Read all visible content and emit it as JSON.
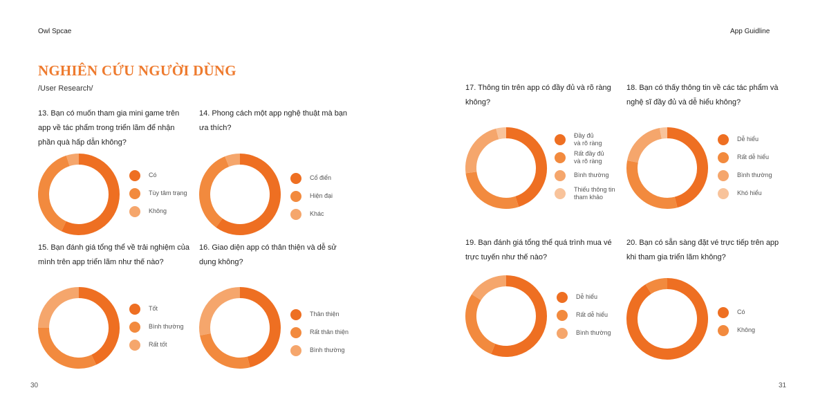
{
  "header": {
    "left": "Owl Spcae",
    "right": "App Guidline"
  },
  "page": {
    "title": "NGHIÊN CỨU NGƯỜI DÙNG",
    "subtitle": "/User Research/",
    "left_page_number": "30",
    "right_page_number": "31"
  },
  "colors": {
    "accent": "#ee7b2f",
    "c1": "#ee6f22",
    "c2": "#f28a3e",
    "c3": "#f5a66c",
    "c4": "#f8c39b"
  },
  "chart_data": [
    {
      "type": "pie",
      "title": "13. Bạn có muốn tham gia mini game trên app về tác phẩm trong triển lãm để nhận phần quà hấp dẫn không?",
      "categories": [
        "Có",
        "Tùy tâm trạng",
        "Không"
      ],
      "values": [
        57,
        38,
        5
      ],
      "colors": [
        "#ee6f22",
        "#f28a3e",
        "#f5a66c"
      ]
    },
    {
      "type": "pie",
      "title": "14. Phong cách một app nghệ thuật mà bạn ưa thích?",
      "categories": [
        "Cổ điển",
        "Hiện đại",
        "Khác"
      ],
      "values": [
        60,
        34,
        6
      ],
      "colors": [
        "#ee6f22",
        "#f28a3e",
        "#f5a66c"
      ]
    },
    {
      "type": "pie",
      "title": "15. Bạn đánh giá tổng thể về trải nghiệm của mình trên app triển lãm như thế nào?",
      "categories": [
        "Tốt",
        "Bình thường",
        "Rất tốt"
      ],
      "values": [
        43,
        32,
        25
      ],
      "colors": [
        "#ee6f22",
        "#f28a3e",
        "#f5a66c"
      ]
    },
    {
      "type": "pie",
      "title": "16. Giao diện app có thân thiện và dễ sử dụng không?",
      "categories": [
        "Thân thiện",
        "Rất thân thiện",
        "Bình thường"
      ],
      "values": [
        46,
        26,
        28
      ],
      "colors": [
        "#ee6f22",
        "#f28a3e",
        "#f5a66c"
      ]
    },
    {
      "type": "pie",
      "title": "17. Thông tin trên app có đầy đủ và rõ ràng không?",
      "categories": [
        "Đầy đủ\nvà rõ ràng",
        "Rất đầy đủ\nvà rõ ràng",
        "Bình thường",
        "Thiếu thông tin\ntham khảo"
      ],
      "values": [
        45,
        28,
        23,
        4
      ],
      "colors": [
        "#ee6f22",
        "#f28a3e",
        "#f5a66c",
        "#f8c39b"
      ]
    },
    {
      "type": "pie",
      "title": "18. Bạn có thấy thông tin về các tác phẩm và nghệ sĩ đầy đủ và dễ hiểu không?",
      "categories": [
        "Dễ hiểu",
        "Rất dễ hiểu",
        "Bình thường",
        "Khó hiểu"
      ],
      "values": [
        46,
        32,
        19,
        3
      ],
      "colors": [
        "#ee6f22",
        "#f28a3e",
        "#f5a66c",
        "#f8c39b"
      ]
    },
    {
      "type": "pie",
      "title": "19. Bạn đánh giá tổng thể quá trình mua vé trực tuyến như thế nào?",
      "categories": [
        "Dễ hiểu",
        "Rất dễ hiểu",
        "Bình thường"
      ],
      "values": [
        56,
        28,
        16
      ],
      "colors": [
        "#ee6f22",
        "#f28a3e",
        "#f5a66c"
      ]
    },
    {
      "type": "pie",
      "title": "20. Bạn có sẵn sàng đặt vé trực tiếp trên app khi tham gia triển lãm không?",
      "categories": [
        "Có",
        "Không"
      ],
      "values": [
        91,
        9
      ],
      "colors": [
        "#ee6f22",
        "#f28a3e"
      ]
    }
  ]
}
